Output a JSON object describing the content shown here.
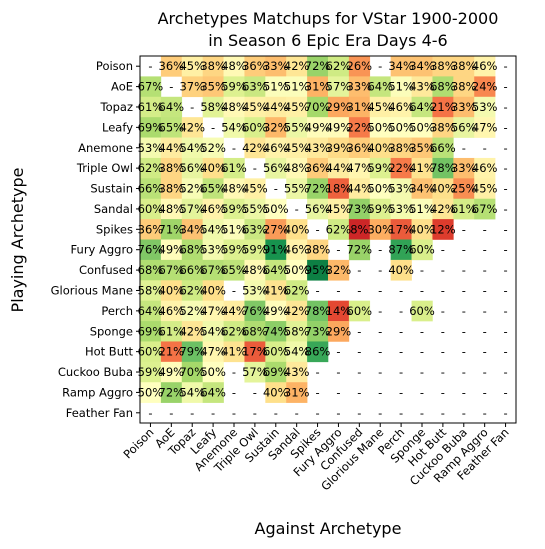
{
  "chart_data": {
    "type": "heatmap",
    "title_line1": "Archetypes Matchups for VStar 1900-2000",
    "title_line2": "in Season 6 Epic Era Days 4-6",
    "xlabel": "Against Archetype",
    "ylabel": "Playing Archetype",
    "colormap": "RdYlGn",
    "value_range": [
      0,
      100
    ],
    "archetypes": [
      "Poison",
      "AoE",
      "Topaz",
      "Leafy",
      "Anemone",
      "Triple Owl",
      "Sustain",
      "Sandal",
      "Spikes",
      "Fury Aggro",
      "Confused",
      "Glorious Mane",
      "Perch",
      "Sponge",
      "Hot Butt",
      "Cuckoo Buba",
      "Ramp Aggro",
      "Feather Fan"
    ],
    "values": [
      [
        null,
        36,
        45,
        38,
        48,
        36,
        33,
        42,
        72,
        62,
        26,
        null,
        34,
        34,
        38,
        38,
        46,
        null
      ],
      [
        67,
        null,
        37,
        35,
        59,
        63,
        51,
        51,
        31,
        57,
        33,
        64,
        51,
        43,
        68,
        38,
        24,
        null
      ],
      [
        61,
        64,
        null,
        58,
        48,
        45,
        44,
        45,
        70,
        29,
        31,
        45,
        46,
        64,
        21,
        33,
        53,
        null
      ],
      [
        69,
        65,
        42,
        null,
        54,
        60,
        32,
        55,
        49,
        49,
        22,
        50,
        50,
        50,
        38,
        56,
        47,
        null
      ],
      [
        53,
        44,
        54,
        52,
        null,
        42,
        46,
        45,
        43,
        39,
        36,
        40,
        38,
        35,
        66,
        null,
        null,
        null
      ],
      [
        62,
        38,
        56,
        40,
        61,
        null,
        56,
        48,
        36,
        44,
        47,
        59,
        22,
        41,
        78,
        33,
        46,
        null
      ],
      [
        66,
        38,
        52,
        65,
        48,
        45,
        null,
        55,
        72,
        18,
        44,
        50,
        53,
        34,
        40,
        25,
        45,
        null
      ],
      [
        60,
        48,
        57,
        46,
        59,
        55,
        50,
        null,
        56,
        45,
        73,
        59,
        53,
        51,
        42,
        61,
        67,
        null
      ],
      [
        36,
        71,
        34,
        54,
        51,
        63,
        27,
        40,
        null,
        62,
        8,
        30,
        17,
        40,
        12,
        null,
        null,
        null
      ],
      [
        76,
        49,
        68,
        53,
        59,
        59,
        91,
        46,
        38,
        null,
        72,
        null,
        87,
        60,
        null,
        null,
        null,
        null
      ],
      [
        68,
        67,
        66,
        67,
        65,
        48,
        64,
        50,
        95,
        32,
        null,
        null,
        40,
        null,
        null,
        null,
        null,
        null
      ],
      [
        58,
        40,
        62,
        40,
        null,
        53,
        41,
        62,
        null,
        null,
        null,
        null,
        null,
        null,
        null,
        null,
        null,
        null
      ],
      [
        64,
        46,
        52,
        47,
        44,
        76,
        49,
        42,
        78,
        14,
        60,
        null,
        null,
        60,
        null,
        null,
        null,
        null
      ],
      [
        69,
        61,
        42,
        54,
        62,
        68,
        74,
        58,
        73,
        29,
        null,
        null,
        null,
        null,
        null,
        null,
        null,
        null
      ],
      [
        60,
        21,
        79,
        47,
        41,
        17,
        60,
        54,
        86,
        null,
        null,
        null,
        null,
        null,
        null,
        null,
        null,
        null
      ],
      [
        59,
        49,
        70,
        50,
        null,
        57,
        69,
        43,
        null,
        null,
        null,
        null,
        null,
        null,
        null,
        null,
        null,
        null
      ],
      [
        50,
        72,
        54,
        64,
        null,
        null,
        40,
        31,
        null,
        null,
        null,
        null,
        null,
        null,
        null,
        null,
        null,
        null
      ],
      [
        null,
        null,
        null,
        null,
        null,
        null,
        null,
        null,
        null,
        null,
        null,
        null,
        null,
        null,
        null,
        null,
        null,
        null
      ]
    ],
    "missing_label": "-"
  }
}
